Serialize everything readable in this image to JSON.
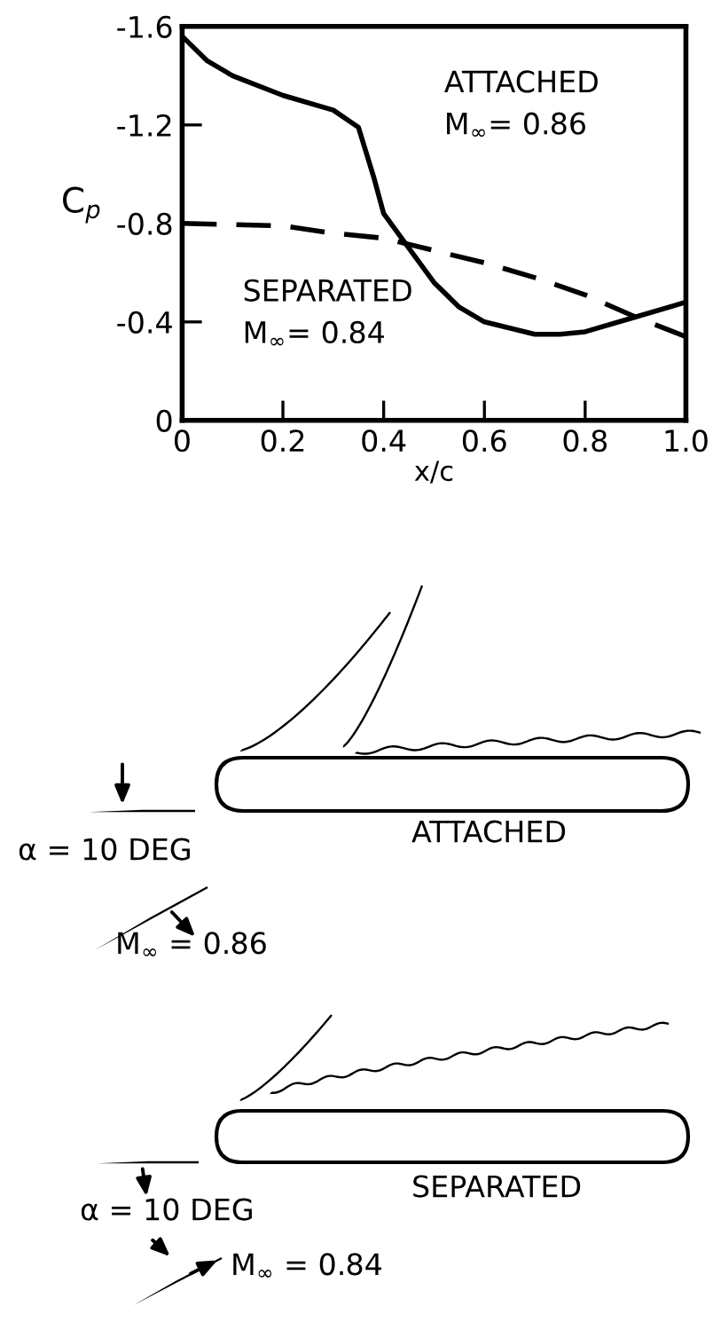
{
  "chart_data": {
    "type": "line",
    "xlabel": "x/c",
    "ylabel": "C$_{p}$",
    "x": [
      0,
      0.05,
      0.1,
      0.2,
      0.3,
      0.35,
      0.38,
      0.4,
      0.45,
      0.5,
      0.55,
      0.6,
      0.7,
      0.75,
      0.8,
      0.9,
      1.0
    ],
    "series": [
      {
        "color": "#000000",
        "line_style": "solid",
        "values": [
          -1.56,
          -1.46,
          -1.4,
          -1.32,
          -1.26,
          -1.19,
          -0.99,
          -0.84,
          -0.7,
          -0.56,
          -0.46,
          -0.4,
          -0.35,
          -0.35,
          -0.36,
          -0.42,
          -0.48
        ]
      },
      {
        "color": "#000000",
        "line_style": "dashed",
        "x": [
          0,
          0.2,
          0.3,
          0.4,
          0.5,
          0.6,
          0.7,
          0.8,
          0.9,
          1.0
        ],
        "values": [
          -0.8,
          -0.79,
          -0.76,
          -0.74,
          -0.69,
          -0.64,
          -0.58,
          -0.51,
          -0.42,
          -0.34
        ]
      }
    ],
    "xlim": [
      0,
      1.0
    ],
    "ylim": [
      0,
      -1.6
    ],
    "xticks": [
      0,
      {
        "value": 0.2,
        "label": "0.2"
      },
      {
        "value": 0.4,
        "label": "0.4"
      },
      {
        "value": 0.6,
        "label": "0.6"
      },
      {
        "value": 0.8,
        "label": "0.8"
      },
      {
        "value": 1.0,
        "label": "1.0"
      }
    ],
    "yticks": [
      0,
      {
        "value": -0.4,
        "label": "-0.4"
      },
      {
        "value": -0.8,
        "label": "-0.8"
      },
      {
        "value": -1.2,
        "label": "-1.2"
      },
      {
        "value": -1.6,
        "label": "-1.6"
      }
    ],
    "grid": false,
    "marker": "none",
    "annotations": [
      "ATTACHED\nM$_{∞}$= 0.86",
      "SEPARATED\nM$_{∞}$= 0.84",
      "α = 10 DEG",
      "ATTACHED",
      "M$_{∞}$ = 0.86",
      "α = 10 DEG",
      "SEPARATED",
      "M$_{∞}$ = 0.84"
    ]
  }
}
